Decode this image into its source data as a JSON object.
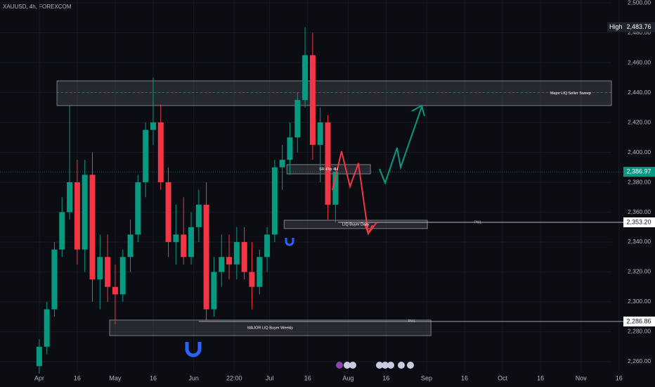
{
  "chart_data": {
    "type": "candlestick",
    "title": "XAUUSD, 4h, FOREXCOM",
    "x": [
      0,
      3,
      6,
      9,
      12,
      15,
      18,
      21,
      24,
      27,
      30,
      33,
      36,
      39,
      42,
      45,
      48,
      51,
      54,
      57,
      60,
      63,
      66,
      69,
      72,
      75,
      78,
      81,
      84,
      87,
      90,
      93,
      96,
      99,
      102,
      105,
      108,
      111,
      114,
      117
    ],
    "open": [
      2257,
      2270,
      2295,
      2335,
      2360,
      2380,
      2335,
      2385,
      2315,
      2330,
      2310,
      2305,
      2330,
      2345,
      2380,
      2415,
      2420,
      2380,
      2340,
      2345,
      2330,
      2350,
      2365,
      2295,
      2320,
      2330,
      2325,
      2340,
      2320,
      2310,
      2330,
      2345,
      2390,
      2395,
      2410,
      2435,
      2465,
      2405,
      2420,
      2365
    ],
    "high": [
      2275,
      2300,
      2340,
      2370,
      2431,
      2395,
      2395,
      2400,
      2345,
      2345,
      2325,
      2335,
      2355,
      2385,
      2420,
      2450,
      2432,
      2390,
      2365,
      2370,
      2360,
      2375,
      2380,
      2330,
      2345,
      2345,
      2350,
      2350,
      2340,
      2335,
      2350,
      2395,
      2405,
      2420,
      2440,
      2483.76,
      2480,
      2430,
      2425,
      2390
    ],
    "low": [
      2252,
      2265,
      2290,
      2330,
      2355,
      2325,
      2320,
      2300,
      2295,
      2300,
      2285,
      2300,
      2320,
      2340,
      2370,
      2405,
      2375,
      2330,
      2325,
      2325,
      2325,
      2340,
      2287,
      2290,
      2310,
      2315,
      2315,
      2315,
      2295,
      2305,
      2320,
      2340,
      2375,
      2385,
      2400,
      2430,
      2395,
      2380,
      2355,
      2353
    ],
    "close": [
      2270,
      2295,
      2335,
      2360,
      2380,
      2335,
      2385,
      2315,
      2330,
      2310,
      2305,
      2330,
      2345,
      2380,
      2415,
      2420,
      2380,
      2340,
      2345,
      2330,
      2350,
      2365,
      2295,
      2320,
      2330,
      2325,
      2340,
      2320,
      2310,
      2330,
      2345,
      2390,
      2395,
      2410,
      2435,
      2465,
      2405,
      2420,
      2365,
      2387
    ],
    "up_color": "#089981",
    "down_color": "#f23645",
    "xlim": [
      -15.5,
      226
    ],
    "ylim": [
      2253.4,
      2501.9
    ],
    "xticks": [
      {
        "value": 0,
        "label": "Apr"
      },
      {
        "value": 15,
        "label": "16"
      },
      {
        "value": 30,
        "label": "May"
      },
      {
        "value": 45,
        "label": "16"
      },
      {
        "value": 61,
        "label": "Jun"
      },
      {
        "value": 77,
        "label": "22:00"
      },
      {
        "value": 91,
        "label": "Jul"
      },
      {
        "value": 106,
        "label": "16"
      },
      {
        "value": 122,
        "label": "Aug"
      },
      {
        "value": 137,
        "label": "16"
      },
      {
        "value": 153,
        "label": "Sep"
      },
      {
        "value": 168,
        "label": "16"
      },
      {
        "value": 183,
        "label": "Oct"
      },
      {
        "value": 198,
        "label": "16"
      },
      {
        "value": 214,
        "label": "Nov"
      },
      {
        "value": 229,
        "label": "16"
      }
    ],
    "yticks": [
      {
        "value": 2260,
        "label": "2,260.00"
      },
      {
        "value": 2280,
        "label": "2,280.00"
      },
      {
        "value": 2300,
        "label": "2,300.00"
      },
      {
        "value": 2320,
        "label": "2,320.00"
      },
      {
        "value": 2340,
        "label": "2,340.00"
      },
      {
        "value": 2360,
        "label": "2,360.00"
      },
      {
        "value": 2380,
        "label": "2,380.00"
      },
      {
        "value": 2400,
        "label": "2,400.00"
      },
      {
        "value": 2420,
        "label": "2,420.00"
      },
      {
        "value": 2440,
        "label": "2,440.00"
      },
      {
        "value": 2460,
        "label": "2,460.00"
      },
      {
        "value": 2480,
        "label": "2,480.00"
      },
      {
        "value": 2500,
        "label": "2,500.00"
      }
    ],
    "zones": [
      {
        "label": "Major LIQ Seller Sweep",
        "start": 7,
        "end": 226,
        "top": 2447.8,
        "bottom": 2431.3,
        "mid": 2440
      },
      {
        "label": "SR-Flip 4H",
        "start": 97.8,
        "end": 130.8,
        "top": 2391.8,
        "bottom": 2385.6
      },
      {
        "label": "LIQ Buyer Daily",
        "start": 96.7,
        "end": 153.3,
        "top": 2354.6,
        "bottom": 2349
      },
      {
        "label": "MAJOR LIQ Buyer Weekly",
        "start": 27.8,
        "end": 154.7,
        "top": 2287.8,
        "bottom": 2277.4
      }
    ],
    "levels": [
      {
        "label": "PWL",
        "value": 2353.2,
        "value_label": "2,353.20",
        "start": 118
      },
      {
        "label": "PWL",
        "value": 2286.86,
        "value_label": "2,286.86",
        "start": 63
      }
    ],
    "high_tag": {
      "label": "High",
      "value": 2483.76,
      "value_label": "2,483.76"
    },
    "last_price": {
      "value": 2386.97,
      "value_label": "2,386.97",
      "color": "#089981"
    }
  }
}
